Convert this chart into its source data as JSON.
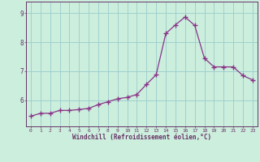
{
  "x": [
    0,
    1,
    2,
    3,
    4,
    5,
    6,
    7,
    8,
    9,
    10,
    11,
    12,
    13,
    14,
    15,
    16,
    17,
    18,
    19,
    20,
    21,
    22,
    23
  ],
  "y": [
    5.45,
    5.55,
    5.55,
    5.65,
    5.65,
    5.68,
    5.72,
    5.85,
    5.95,
    6.05,
    6.1,
    6.2,
    6.55,
    6.88,
    8.3,
    8.6,
    8.87,
    8.58,
    7.45,
    7.15,
    7.15,
    7.15,
    6.85,
    6.7
  ],
  "xlim": [
    -0.5,
    23.5
  ],
  "ylim": [
    5.1,
    9.4
  ],
  "yticks": [
    6,
    7,
    8,
    9
  ],
  "xticks": [
    0,
    1,
    2,
    3,
    4,
    5,
    6,
    7,
    8,
    9,
    10,
    11,
    12,
    13,
    14,
    15,
    16,
    17,
    18,
    19,
    20,
    21,
    22,
    23
  ],
  "xlabel": "Windchill (Refroidissement éolien,°C)",
  "line_color": "#883388",
  "marker": "+",
  "bg_color": "#cceedd",
  "grid_color": "#99cccc",
  "axis_color": "#663366",
  "spine_color": "#663366"
}
